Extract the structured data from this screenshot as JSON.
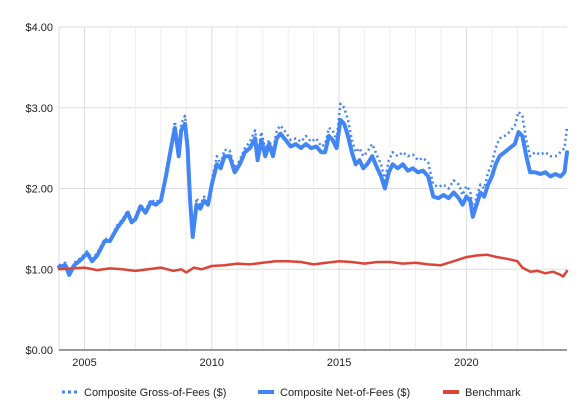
{
  "chart_data": {
    "type": "line",
    "title": "",
    "xlabel": "",
    "ylabel": "",
    "xlim": [
      2004.0,
      2023.95
    ],
    "ylim": [
      0,
      4
    ],
    "grid": true,
    "legend_position": "bottom",
    "x_ticks": [
      {
        "value": 2005,
        "label": "2005"
      },
      {
        "value": 2010,
        "label": "2010"
      },
      {
        "value": 2015,
        "label": "2015"
      },
      {
        "value": 2020,
        "label": "2020"
      }
    ],
    "y_ticks": [
      {
        "value": 0,
        "label": "$0.00"
      },
      {
        "value": 1,
        "label": "$1.00"
      },
      {
        "value": 2,
        "label": "$2.00"
      },
      {
        "value": 3,
        "label": "$3.00"
      },
      {
        "value": 4,
        "label": "$4.00"
      }
    ],
    "series": [
      {
        "name": "Composite Gross-of-Fees ($)",
        "color": "#4285f4",
        "style": "dotted",
        "points": [
          [
            2004.0,
            1.05
          ],
          [
            2004.25,
            1.08
          ],
          [
            2004.4,
            0.95
          ],
          [
            2004.6,
            1.08
          ],
          [
            2004.9,
            1.15
          ],
          [
            2005.1,
            1.22
          ],
          [
            2005.3,
            1.13
          ],
          [
            2005.5,
            1.2
          ],
          [
            2005.8,
            1.38
          ],
          [
            2006.0,
            1.37
          ],
          [
            2006.3,
            1.55
          ],
          [
            2006.5,
            1.62
          ],
          [
            2006.7,
            1.73
          ],
          [
            2006.85,
            1.6
          ],
          [
            2007.0,
            1.65
          ],
          [
            2007.2,
            1.8
          ],
          [
            2007.4,
            1.73
          ],
          [
            2007.6,
            1.86
          ],
          [
            2007.8,
            1.83
          ],
          [
            2008.0,
            1.87
          ],
          [
            2008.2,
            2.2
          ],
          [
            2008.4,
            2.55
          ],
          [
            2008.55,
            2.83
          ],
          [
            2008.7,
            2.45
          ],
          [
            2008.8,
            2.8
          ],
          [
            2008.95,
            2.9
          ],
          [
            2009.05,
            2.6
          ],
          [
            2009.15,
            1.9
          ],
          [
            2009.25,
            1.45
          ],
          [
            2009.4,
            1.88
          ],
          [
            2009.55,
            1.8
          ],
          [
            2009.7,
            1.9
          ],
          [
            2009.85,
            1.82
          ],
          [
            2010.0,
            2.1
          ],
          [
            2010.2,
            2.4
          ],
          [
            2010.35,
            2.3
          ],
          [
            2010.5,
            2.48
          ],
          [
            2010.7,
            2.47
          ],
          [
            2010.9,
            2.25
          ],
          [
            2011.1,
            2.35
          ],
          [
            2011.3,
            2.5
          ],
          [
            2011.5,
            2.58
          ],
          [
            2011.7,
            2.72
          ],
          [
            2011.8,
            2.42
          ],
          [
            2011.95,
            2.7
          ],
          [
            2012.1,
            2.48
          ],
          [
            2012.25,
            2.6
          ],
          [
            2012.4,
            2.45
          ],
          [
            2012.55,
            2.72
          ],
          [
            2012.7,
            2.78
          ],
          [
            2012.9,
            2.7
          ],
          [
            2013.1,
            2.6
          ],
          [
            2013.3,
            2.62
          ],
          [
            2013.5,
            2.58
          ],
          [
            2013.7,
            2.65
          ],
          [
            2013.9,
            2.58
          ],
          [
            2014.1,
            2.62
          ],
          [
            2014.3,
            2.52
          ],
          [
            2014.45,
            2.55
          ],
          [
            2014.6,
            2.75
          ],
          [
            2014.75,
            2.72
          ],
          [
            2014.9,
            2.6
          ],
          [
            2015.05,
            3.05
          ],
          [
            2015.2,
            3.0
          ],
          [
            2015.35,
            2.85
          ],
          [
            2015.5,
            2.6
          ],
          [
            2015.65,
            2.45
          ],
          [
            2015.8,
            2.5
          ],
          [
            2015.95,
            2.4
          ],
          [
            2016.1,
            2.45
          ],
          [
            2016.3,
            2.55
          ],
          [
            2016.5,
            2.4
          ],
          [
            2016.65,
            2.3
          ],
          [
            2016.8,
            2.1
          ],
          [
            2016.95,
            2.35
          ],
          [
            2017.1,
            2.45
          ],
          [
            2017.3,
            2.4
          ],
          [
            2017.5,
            2.45
          ],
          [
            2017.7,
            2.4
          ],
          [
            2017.9,
            2.42
          ],
          [
            2018.1,
            2.35
          ],
          [
            2018.3,
            2.38
          ],
          [
            2018.5,
            2.32
          ],
          [
            2018.7,
            2.05
          ],
          [
            2018.9,
            2.02
          ],
          [
            2019.1,
            2.05
          ],
          [
            2019.3,
            2.0
          ],
          [
            2019.5,
            2.1
          ],
          [
            2019.7,
            2.05
          ],
          [
            2019.85,
            1.92
          ],
          [
            2020.0,
            2.03
          ],
          [
            2020.15,
            1.97
          ],
          [
            2020.25,
            1.72
          ],
          [
            2020.4,
            1.9
          ],
          [
            2020.55,
            2.05
          ],
          [
            2020.7,
            2.0
          ],
          [
            2020.85,
            2.2
          ],
          [
            2021.0,
            2.3
          ],
          [
            2021.15,
            2.5
          ],
          [
            2021.3,
            2.62
          ],
          [
            2021.5,
            2.65
          ],
          [
            2021.7,
            2.7
          ],
          [
            2021.9,
            2.78
          ],
          [
            2022.05,
            2.95
          ],
          [
            2022.2,
            2.9
          ],
          [
            2022.35,
            2.6
          ],
          [
            2022.5,
            2.4
          ],
          [
            2022.7,
            2.45
          ],
          [
            2022.9,
            2.42
          ],
          [
            2023.1,
            2.45
          ],
          [
            2023.3,
            2.4
          ],
          [
            2023.5,
            2.4
          ],
          [
            2023.7,
            2.45
          ],
          [
            2023.85,
            2.5
          ],
          [
            2023.95,
            2.75
          ]
        ]
      },
      {
        "name": "Composite Net-of-Fees ($)",
        "color": "#4285f4",
        "style": "solid",
        "points": [
          [
            2004.0,
            1.03
          ],
          [
            2004.25,
            1.05
          ],
          [
            2004.4,
            0.93
          ],
          [
            2004.6,
            1.05
          ],
          [
            2004.9,
            1.13
          ],
          [
            2005.1,
            1.2
          ],
          [
            2005.3,
            1.1
          ],
          [
            2005.5,
            1.17
          ],
          [
            2005.8,
            1.35
          ],
          [
            2006.0,
            1.35
          ],
          [
            2006.3,
            1.52
          ],
          [
            2006.5,
            1.6
          ],
          [
            2006.7,
            1.7
          ],
          [
            2006.85,
            1.58
          ],
          [
            2007.0,
            1.62
          ],
          [
            2007.2,
            1.78
          ],
          [
            2007.4,
            1.7
          ],
          [
            2007.6,
            1.83
          ],
          [
            2007.8,
            1.8
          ],
          [
            2008.0,
            1.85
          ],
          [
            2008.2,
            2.15
          ],
          [
            2008.4,
            2.5
          ],
          [
            2008.55,
            2.75
          ],
          [
            2008.7,
            2.4
          ],
          [
            2008.8,
            2.72
          ],
          [
            2008.95,
            2.8
          ],
          [
            2009.05,
            2.5
          ],
          [
            2009.15,
            1.85
          ],
          [
            2009.25,
            1.4
          ],
          [
            2009.4,
            1.8
          ],
          [
            2009.55,
            1.75
          ],
          [
            2009.7,
            1.85
          ],
          [
            2009.85,
            1.8
          ],
          [
            2010.0,
            2.05
          ],
          [
            2010.2,
            2.3
          ],
          [
            2010.35,
            2.25
          ],
          [
            2010.5,
            2.4
          ],
          [
            2010.7,
            2.4
          ],
          [
            2010.9,
            2.2
          ],
          [
            2011.1,
            2.3
          ],
          [
            2011.3,
            2.45
          ],
          [
            2011.5,
            2.5
          ],
          [
            2011.7,
            2.62
          ],
          [
            2011.8,
            2.35
          ],
          [
            2011.95,
            2.6
          ],
          [
            2012.1,
            2.4
          ],
          [
            2012.25,
            2.55
          ],
          [
            2012.4,
            2.4
          ],
          [
            2012.55,
            2.62
          ],
          [
            2012.7,
            2.68
          ],
          [
            2012.9,
            2.6
          ],
          [
            2013.1,
            2.52
          ],
          [
            2013.3,
            2.55
          ],
          [
            2013.5,
            2.5
          ],
          [
            2013.7,
            2.55
          ],
          [
            2013.9,
            2.5
          ],
          [
            2014.1,
            2.52
          ],
          [
            2014.3,
            2.45
          ],
          [
            2014.45,
            2.45
          ],
          [
            2014.6,
            2.65
          ],
          [
            2014.75,
            2.6
          ],
          [
            2014.9,
            2.5
          ],
          [
            2015.05,
            2.85
          ],
          [
            2015.2,
            2.8
          ],
          [
            2015.35,
            2.65
          ],
          [
            2015.5,
            2.45
          ],
          [
            2015.65,
            2.3
          ],
          [
            2015.8,
            2.35
          ],
          [
            2015.95,
            2.25
          ],
          [
            2016.1,
            2.3
          ],
          [
            2016.3,
            2.4
          ],
          [
            2016.5,
            2.25
          ],
          [
            2016.65,
            2.15
          ],
          [
            2016.8,
            2.0
          ],
          [
            2016.95,
            2.2
          ],
          [
            2017.1,
            2.3
          ],
          [
            2017.3,
            2.25
          ],
          [
            2017.5,
            2.3
          ],
          [
            2017.7,
            2.22
          ],
          [
            2017.9,
            2.25
          ],
          [
            2018.1,
            2.2
          ],
          [
            2018.3,
            2.22
          ],
          [
            2018.5,
            2.15
          ],
          [
            2018.7,
            1.9
          ],
          [
            2018.9,
            1.88
          ],
          [
            2019.1,
            1.92
          ],
          [
            2019.3,
            1.88
          ],
          [
            2019.5,
            1.95
          ],
          [
            2019.7,
            1.88
          ],
          [
            2019.85,
            1.8
          ],
          [
            2020.0,
            1.9
          ],
          [
            2020.15,
            1.85
          ],
          [
            2020.25,
            1.65
          ],
          [
            2020.4,
            1.8
          ],
          [
            2020.55,
            1.95
          ],
          [
            2020.7,
            1.9
          ],
          [
            2020.85,
            2.05
          ],
          [
            2021.0,
            2.15
          ],
          [
            2021.15,
            2.3
          ],
          [
            2021.3,
            2.4
          ],
          [
            2021.5,
            2.45
          ],
          [
            2021.7,
            2.5
          ],
          [
            2021.9,
            2.55
          ],
          [
            2022.05,
            2.7
          ],
          [
            2022.2,
            2.65
          ],
          [
            2022.35,
            2.4
          ],
          [
            2022.5,
            2.2
          ],
          [
            2022.7,
            2.2
          ],
          [
            2022.9,
            2.18
          ],
          [
            2023.1,
            2.2
          ],
          [
            2023.3,
            2.15
          ],
          [
            2023.5,
            2.18
          ],
          [
            2023.7,
            2.15
          ],
          [
            2023.85,
            2.2
          ],
          [
            2023.95,
            2.45
          ]
        ]
      },
      {
        "name": "Benchmark",
        "color": "#db4437",
        "style": "solid",
        "points": [
          [
            2004.0,
            1.0
          ],
          [
            2004.5,
            1.01
          ],
          [
            2005.0,
            1.02
          ],
          [
            2005.5,
            0.99
          ],
          [
            2006.0,
            1.01
          ],
          [
            2006.5,
            1.0
          ],
          [
            2007.0,
            0.98
          ],
          [
            2007.5,
            1.0
          ],
          [
            2008.0,
            1.02
          ],
          [
            2008.5,
            0.98
          ],
          [
            2008.8,
            1.0
          ],
          [
            2009.0,
            0.96
          ],
          [
            2009.3,
            1.02
          ],
          [
            2009.6,
            1.0
          ],
          [
            2010.0,
            1.04
          ],
          [
            2010.5,
            1.05
          ],
          [
            2011.0,
            1.07
          ],
          [
            2011.5,
            1.06
          ],
          [
            2012.0,
            1.08
          ],
          [
            2012.5,
            1.1
          ],
          [
            2013.0,
            1.1
          ],
          [
            2013.5,
            1.09
          ],
          [
            2014.0,
            1.06
          ],
          [
            2014.5,
            1.08
          ],
          [
            2015.0,
            1.1
          ],
          [
            2015.5,
            1.09
          ],
          [
            2016.0,
            1.07
          ],
          [
            2016.5,
            1.09
          ],
          [
            2017.0,
            1.09
          ],
          [
            2017.5,
            1.07
          ],
          [
            2018.0,
            1.08
          ],
          [
            2018.5,
            1.06
          ],
          [
            2019.0,
            1.05
          ],
          [
            2019.5,
            1.1
          ],
          [
            2020.0,
            1.15
          ],
          [
            2020.4,
            1.17
          ],
          [
            2020.8,
            1.18
          ],
          [
            2021.2,
            1.15
          ],
          [
            2021.6,
            1.13
          ],
          [
            2022.0,
            1.1
          ],
          [
            2022.2,
            1.02
          ],
          [
            2022.5,
            0.97
          ],
          [
            2022.8,
            0.98
          ],
          [
            2023.1,
            0.95
          ],
          [
            2023.4,
            0.97
          ],
          [
            2023.7,
            0.93
          ],
          [
            2023.8,
            0.91
          ],
          [
            2023.95,
            0.98
          ]
        ]
      }
    ]
  }
}
